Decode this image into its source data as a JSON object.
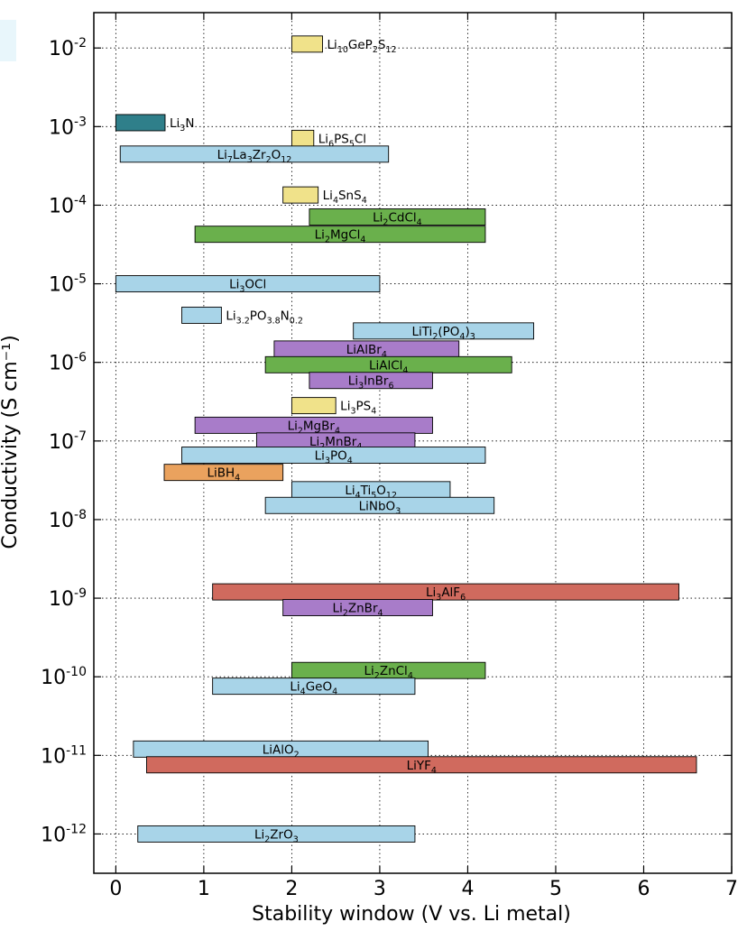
{
  "chart_data": {
    "type": "bar",
    "orientation": "horizontal-floating",
    "xlabel": "Stability window (V vs. Li metal)",
    "ylabel": "Conductivity (S cm⁻¹)",
    "xlim": [
      -0.25,
      7.0
    ],
    "ylim_log10": [
      -12.5,
      -1.55
    ],
    "xticks": [
      0,
      1,
      2,
      3,
      4,
      5,
      6,
      7
    ],
    "yticks": [
      {
        "exp": -2,
        "label": "-2"
      },
      {
        "exp": -3,
        "label": "-3"
      },
      {
        "exp": -4,
        "label": "-4"
      },
      {
        "exp": -5,
        "label": "-5"
      },
      {
        "exp": -6,
        "label": "-6"
      },
      {
        "exp": -7,
        "label": "-7"
      },
      {
        "exp": -8,
        "label": "-8"
      },
      {
        "exp": -9,
        "label": "-9"
      },
      {
        "exp": -10,
        "label": "-10"
      },
      {
        "exp": -11,
        "label": "-11"
      },
      {
        "exp": -12,
        "label": "-12"
      }
    ],
    "tick_base": "10",
    "grid": true,
    "colors": {
      "sulfide": "#f0e28a",
      "nitride": "#2f7f8a",
      "oxide": "#a8d4e8",
      "chloride": "#6ab04c",
      "bromide": "#a87cc9",
      "hydride": "#eaa25e",
      "fluoride": "#d06a5e"
    },
    "series": [
      {
        "name": "Li10GeP2S12",
        "label": [
          [
            "Li",
            ""
          ],
          [
            "10",
            "sub"
          ],
          [
            "GeP",
            ""
          ],
          [
            "2",
            "sub"
          ],
          [
            "S",
            ""
          ],
          [
            "12",
            "sub"
          ]
        ],
        "x": [
          2.0,
          2.35
        ],
        "log10_sigma": -1.95,
        "class": "sulfide",
        "label_pos": "right"
      },
      {
        "name": "Li3N",
        "label": [
          [
            "Li",
            ""
          ],
          [
            "3",
            "sub"
          ],
          [
            "N",
            ""
          ]
        ],
        "x": [
          0.0,
          0.56
        ],
        "log10_sigma": -2.95,
        "class": "nitride",
        "label_pos": "right"
      },
      {
        "name": "Li6PS5Cl",
        "label": [
          [
            "Li",
            ""
          ],
          [
            "6",
            "sub"
          ],
          [
            "PS",
            ""
          ],
          [
            "5",
            "sub"
          ],
          [
            "Cl",
            ""
          ]
        ],
        "x": [
          2.0,
          2.25
        ],
        "log10_sigma": -3.15,
        "class": "sulfide",
        "label_pos": "right"
      },
      {
        "name": "Li7La3Zr2O12",
        "label": [
          [
            "Li",
            ""
          ],
          [
            "7",
            "sub"
          ],
          [
            "La",
            ""
          ],
          [
            "3",
            "sub"
          ],
          [
            "Zr",
            ""
          ],
          [
            "2",
            "sub"
          ],
          [
            "O",
            ""
          ],
          [
            "12",
            "sub"
          ]
        ],
        "x": [
          0.05,
          3.1
        ],
        "log10_sigma": -3.35,
        "class": "oxide",
        "label_pos": "center"
      },
      {
        "name": "Li4SnS4",
        "label": [
          [
            "Li",
            ""
          ],
          [
            "4",
            "sub"
          ],
          [
            "SnS",
            ""
          ],
          [
            "4",
            "sub"
          ]
        ],
        "x": [
          1.9,
          2.3
        ],
        "log10_sigma": -3.87,
        "class": "sulfide",
        "label_pos": "right"
      },
      {
        "name": "Li2CdCl4",
        "label": [
          [
            "Li",
            ""
          ],
          [
            "2",
            "sub"
          ],
          [
            "CdCl",
            ""
          ],
          [
            "4",
            "sub"
          ]
        ],
        "x": [
          2.2,
          4.2
        ],
        "log10_sigma": -4.15,
        "class": "chloride",
        "label_pos": "center"
      },
      {
        "name": "Li2MgCl4",
        "label": [
          [
            "Li",
            ""
          ],
          [
            "2",
            "sub"
          ],
          [
            "MgCl",
            ""
          ],
          [
            "4",
            "sub"
          ]
        ],
        "x": [
          0.9,
          4.2
        ],
        "log10_sigma": -4.37,
        "class": "chloride",
        "label_pos": "center"
      },
      {
        "name": "Li3OCl",
        "label": [
          [
            "Li",
            ""
          ],
          [
            "3",
            "sub"
          ],
          [
            "OCl",
            ""
          ]
        ],
        "x": [
          0.0,
          3.0
        ],
        "log10_sigma": -5.0,
        "class": "oxide",
        "label_pos": "center"
      },
      {
        "name": "Li3.2PO3.8N0.2",
        "label": [
          [
            "Li",
            ""
          ],
          [
            "3.2",
            "sub"
          ],
          [
            "PO",
            ""
          ],
          [
            "3.8",
            "sub"
          ],
          [
            "N",
            ""
          ],
          [
            "0.2",
            "sub"
          ]
        ],
        "x": [
          0.75,
          1.2
        ],
        "log10_sigma": -5.4,
        "class": "oxide",
        "label_pos": "right"
      },
      {
        "name": "LiTi2(PO4)3",
        "label": [
          [
            "LiTi",
            ""
          ],
          [
            "2",
            "sub"
          ],
          [
            "(PO",
            ""
          ],
          [
            "4",
            "sub"
          ],
          [
            ")",
            ""
          ],
          [
            "3",
            "sub"
          ]
        ],
        "x": [
          2.7,
          4.75
        ],
        "log10_sigma": -5.6,
        "class": "oxide",
        "label_pos": "center"
      },
      {
        "name": "LiAlBr4",
        "label": [
          [
            "LiAlBr",
            ""
          ],
          [
            "4",
            "sub"
          ]
        ],
        "x": [
          1.8,
          3.9
        ],
        "log10_sigma": -5.83,
        "class": "bromide",
        "label_pos": "center"
      },
      {
        "name": "LiAlCl4",
        "label": [
          [
            "LiAlCl",
            ""
          ],
          [
            "4",
            "sub"
          ]
        ],
        "x": [
          1.7,
          4.5
        ],
        "log10_sigma": -6.03,
        "class": "chloride",
        "label_pos": "center"
      },
      {
        "name": "Li3InBr6",
        "label": [
          [
            "Li",
            ""
          ],
          [
            "3",
            "sub"
          ],
          [
            "InBr",
            ""
          ],
          [
            "6",
            "sub"
          ]
        ],
        "x": [
          2.2,
          3.6
        ],
        "log10_sigma": -6.23,
        "class": "bromide",
        "label_pos": "center"
      },
      {
        "name": "Li3PS4",
        "label": [
          [
            "Li",
            ""
          ],
          [
            "3",
            "sub"
          ],
          [
            "PS",
            ""
          ],
          [
            "4",
            "sub"
          ]
        ],
        "x": [
          2.0,
          2.5
        ],
        "log10_sigma": -6.55,
        "class": "sulfide",
        "label_pos": "right"
      },
      {
        "name": "Li2MgBr4",
        "label": [
          [
            "Li",
            ""
          ],
          [
            "2",
            "sub"
          ],
          [
            "MgBr",
            ""
          ],
          [
            "4",
            "sub"
          ]
        ],
        "x": [
          0.9,
          3.6
        ],
        "log10_sigma": -6.8,
        "class": "bromide",
        "label_pos": "center"
      },
      {
        "name": "Li2MnBr4",
        "label": [
          [
            "Li",
            ""
          ],
          [
            "2",
            "sub"
          ],
          [
            "MnBr",
            ""
          ],
          [
            "4",
            "sub"
          ]
        ],
        "x": [
          1.6,
          3.4
        ],
        "log10_sigma": -7.0,
        "class": "bromide",
        "label_pos": "center"
      },
      {
        "name": "Li3PO4",
        "label": [
          [
            "Li",
            ""
          ],
          [
            "3",
            "sub"
          ],
          [
            "PO",
            ""
          ],
          [
            "4",
            "sub"
          ]
        ],
        "x": [
          0.75,
          4.2
        ],
        "log10_sigma": -7.18,
        "class": "oxide",
        "label_pos": "center"
      },
      {
        "name": "LiBH4",
        "label": [
          [
            "LiBH",
            ""
          ],
          [
            "4",
            "sub"
          ]
        ],
        "x": [
          0.55,
          1.9
        ],
        "log10_sigma": -7.4,
        "class": "hydride",
        "label_pos": "center"
      },
      {
        "name": "Li4Ti5O12",
        "label": [
          [
            "Li",
            ""
          ],
          [
            "4",
            "sub"
          ],
          [
            "Ti",
            ""
          ],
          [
            "5",
            "sub"
          ],
          [
            "O",
            ""
          ],
          [
            "12",
            "sub"
          ]
        ],
        "x": [
          2.0,
          3.8
        ],
        "log10_sigma": -7.62,
        "class": "oxide",
        "label_pos": "center"
      },
      {
        "name": "LiNbO3",
        "label": [
          [
            "LiNbO",
            ""
          ],
          [
            "3",
            "sub"
          ]
        ],
        "x": [
          1.7,
          4.3
        ],
        "log10_sigma": -7.82,
        "class": "oxide",
        "label_pos": "center"
      },
      {
        "name": "Li3AlF6",
        "label": [
          [
            "Li",
            ""
          ],
          [
            "3",
            "sub"
          ],
          [
            "AlF",
            ""
          ],
          [
            "6",
            "sub"
          ]
        ],
        "x": [
          1.1,
          6.4
        ],
        "log10_sigma": -8.92,
        "class": "fluoride",
        "label_pos": "center"
      },
      {
        "name": "Li2ZnBr4",
        "label": [
          [
            "Li",
            ""
          ],
          [
            "2",
            "sub"
          ],
          [
            "ZnBr",
            ""
          ],
          [
            "4",
            "sub"
          ]
        ],
        "x": [
          1.9,
          3.6
        ],
        "log10_sigma": -9.12,
        "class": "bromide",
        "label_pos": "center"
      },
      {
        "name": "Li2ZnCl4",
        "label": [
          [
            "Li",
            ""
          ],
          [
            "2",
            "sub"
          ],
          [
            "ZnCl",
            ""
          ],
          [
            "4",
            "sub"
          ]
        ],
        "x": [
          2.0,
          4.2
        ],
        "log10_sigma": -9.92,
        "class": "chloride",
        "label_pos": "center"
      },
      {
        "name": "Li4GeO4",
        "label": [
          [
            "Li",
            ""
          ],
          [
            "4",
            "sub"
          ],
          [
            "GeO",
            ""
          ],
          [
            "4",
            "sub"
          ]
        ],
        "x": [
          1.1,
          3.4
        ],
        "log10_sigma": -10.12,
        "class": "oxide",
        "label_pos": "center"
      },
      {
        "name": "LiAlO2",
        "label": [
          [
            "LiAlO",
            ""
          ],
          [
            "2",
            "sub"
          ]
        ],
        "x": [
          0.2,
          3.55
        ],
        "log10_sigma": -10.92,
        "class": "oxide",
        "label_pos": "center"
      },
      {
        "name": "LiYF4",
        "label": [
          [
            "LiYF",
            ""
          ],
          [
            "4",
            "sub"
          ]
        ],
        "x": [
          0.35,
          6.6
        ],
        "log10_sigma": -11.12,
        "class": "fluoride",
        "label_pos": "center"
      },
      {
        "name": "Li2ZrO3",
        "label": [
          [
            "Li",
            ""
          ],
          [
            "2",
            "sub"
          ],
          [
            "ZrO",
            ""
          ],
          [
            "3",
            "sub"
          ]
        ],
        "x": [
          0.25,
          3.4
        ],
        "log10_sigma": -12.0,
        "class": "oxide",
        "label_pos": "center"
      }
    ]
  }
}
